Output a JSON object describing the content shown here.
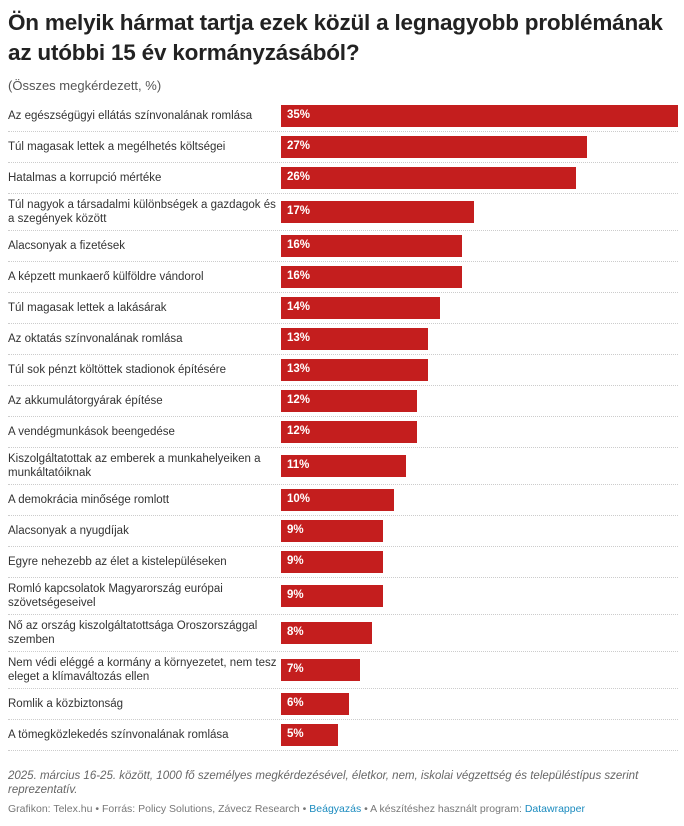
{
  "title": "Ön melyik hármat tartja ezek közül a legnagyobb problémának az utóbbi 15 év kormányzásából?",
  "subtitle": "(Összes megkérdezett, %)",
  "chart_data": {
    "type": "bar",
    "orientation": "horizontal",
    "title": "Ön melyik hármat tartja ezek közül a legnagyobb problémának az utóbbi 15 év kormányzásából?",
    "subtitle": "(Összes megkérdezett, %)",
    "categories": [
      "Az egészségügyi ellátás színvonalának romlása",
      "Túl magasak lettek a megélhetés költségei",
      "Hatalmas a korrupció mértéke",
      "Túl nagyok a társadalmi különbségek a gazdagok és a szegények között",
      "Alacsonyak a fizetések",
      "A képzett munkaerő külföldre vándorol",
      "Túl magasak lettek a lakásárak",
      "Az oktatás színvonalának romlása",
      "Túl sok pénzt költöttek stadionok építésére",
      "Az akkumulátorgyárak építése",
      "A vendégmunkások beengedése",
      "Kiszolgáltatottak az emberek a munkahelyeiken a munkáltatóiknak",
      "A demokrácia minősége romlott",
      "Alacsonyak a nyugdíjak",
      "Egyre nehezebb az élet a kistelepüléseken",
      "Romló kapcsolatok Magyarország európai szövetségeseivel",
      "Nő az ország kiszolgáltatottsága Oroszországgal szemben",
      "Nem védi eléggé a kormány a környezetet, nem tesz eleget a klímaváltozás ellen",
      "Romlik a közbiztonság",
      "A tömegközlekedés színvonalának romlása"
    ],
    "values": [
      35,
      27,
      26,
      17,
      16,
      16,
      14,
      13,
      13,
      12,
      12,
      11,
      10,
      9,
      9,
      9,
      8,
      7,
      6,
      5
    ],
    "value_labels": [
      "35%",
      "27%",
      "26%",
      "17%",
      "16%",
      "16%",
      "14%",
      "13%",
      "13%",
      "12%",
      "12%",
      "11%",
      "10%",
      "9%",
      "9%",
      "9%",
      "8%",
      "7%",
      "6%",
      "5%"
    ],
    "xlim": [
      0,
      35
    ],
    "bar_color": "#c41e1e",
    "grid": false
  },
  "note": "2025. március 16-25. között, 1000 fő személyes megkérdezésével, életkor, nem, iskolai végzettség és településtípus szerint reprezentatív.",
  "footer": {
    "credit": "Grafikon: Telex.hu • Forrás: Policy Solutions, Závecz Research • ",
    "embed_link": "Beágyazás",
    "tool_text": " • A készítéshez használt program: ",
    "tool_link": "Datawrapper"
  }
}
